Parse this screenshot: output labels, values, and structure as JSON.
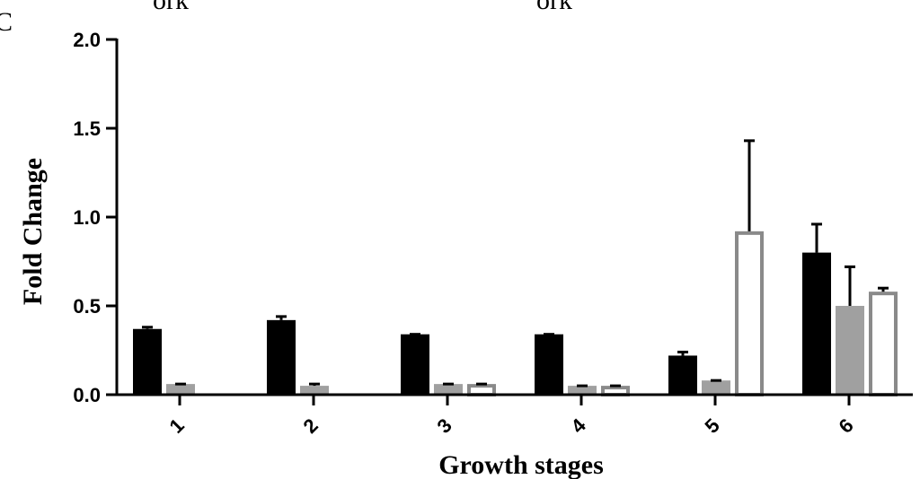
{
  "header_fragments": [
    "C",
    "ork",
    "ork"
  ],
  "chart_data": {
    "type": "bar",
    "title": "",
    "xlabel": "Growth stages",
    "ylabel": "Fold Change",
    "ylim": [
      0,
      2.0
    ],
    "yticks": [
      0.0,
      0.5,
      1.0,
      1.5,
      2.0
    ],
    "ytick_labels": [
      "0.0",
      "0.5",
      "1.0",
      "1.5",
      "2.0"
    ],
    "categories": [
      "1",
      "2",
      "3",
      "4",
      "5",
      "6"
    ],
    "series": [
      {
        "name": "series-black",
        "color": "#000000",
        "style": "filled",
        "values": [
          0.37,
          0.42,
          0.34,
          0.34,
          0.22,
          0.8
        ],
        "errors": [
          0.01,
          0.02,
          0.0,
          0.0,
          0.02,
          0.16
        ]
      },
      {
        "name": "series-gray",
        "color": "#a0a0a0",
        "style": "filled",
        "values": [
          0.06,
          0.05,
          0.06,
          0.05,
          0.08,
          0.5
        ],
        "errors": [
          0.0,
          0.01,
          0.0,
          0.0,
          0.0,
          0.22
        ]
      },
      {
        "name": "series-white",
        "color": "#8a8a8a",
        "style": "outline",
        "values": [
          null,
          null,
          0.06,
          0.05,
          0.92,
          0.58
        ],
        "errors": [
          null,
          null,
          0.0,
          0.0,
          0.51,
          0.02
        ]
      }
    ]
  }
}
